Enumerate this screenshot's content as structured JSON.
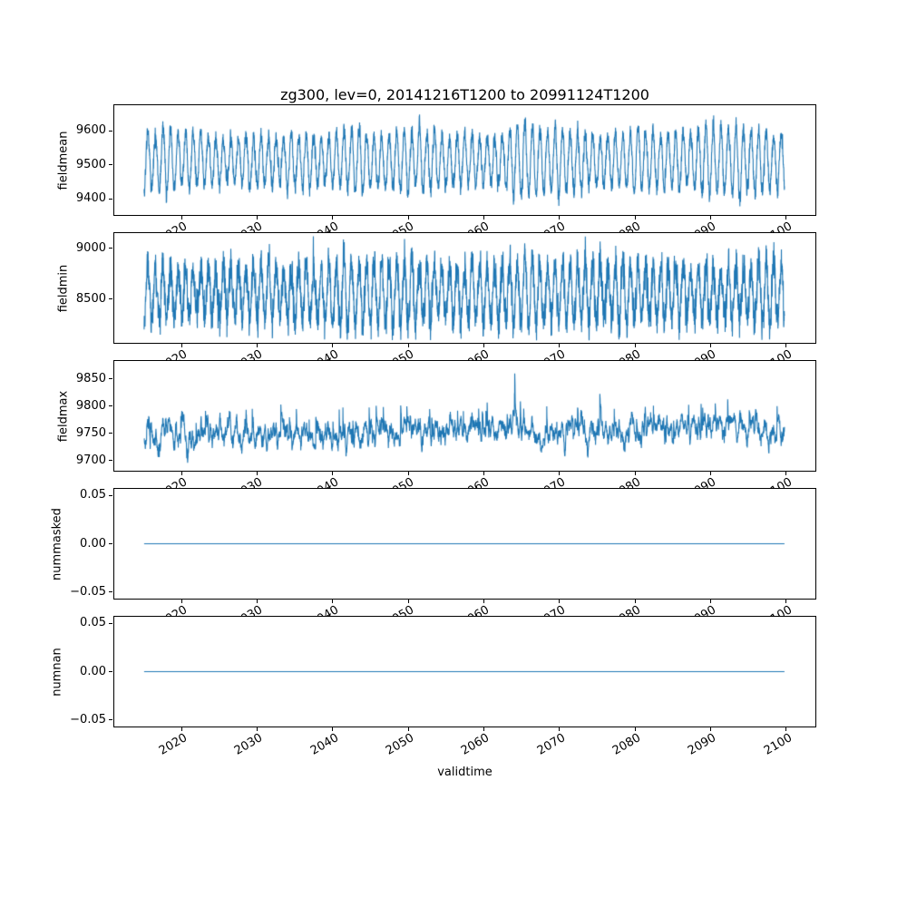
{
  "chart_data": {
    "type": "line",
    "title": "zg300, lev=0, 20141216T1200 to 20991124T1200",
    "grid": false,
    "legend": "none",
    "line_color": "#1f77b4",
    "x": {
      "label": "validtime",
      "lim": [
        2011,
        2104
      ],
      "data_range": [
        2014.96,
        2099.9
      ],
      "ticks": [
        {
          "v": 2020,
          "label": "2020"
        },
        {
          "v": 2030,
          "label": "2030"
        },
        {
          "v": 2040,
          "label": "2040"
        },
        {
          "v": 2050,
          "label": "2050"
        },
        {
          "v": 2060,
          "label": "2060"
        },
        {
          "v": 2070,
          "label": "2070"
        },
        {
          "v": 2080,
          "label": "2080"
        },
        {
          "v": 2090,
          "label": "2090"
        },
        {
          "v": 2100,
          "label": "2100"
        }
      ]
    },
    "subplots": [
      {
        "name": "fieldmean",
        "ylabel": "fieldmean",
        "type": "line",
        "ylim": [
          9350,
          9678
        ],
        "yticks": [
          {
            "v": 9400,
            "label": "9400"
          },
          {
            "v": 9500,
            "label": "9500"
          },
          {
            "v": 9600,
            "label": "9600"
          }
        ],
        "series": {
          "kind": "seasonal",
          "seed": 7,
          "points": 5200,
          "base": 9512,
          "season_amp": 88,
          "amp_jitter": 0.28,
          "noise_sigma": 13,
          "noise_ar": 0.45,
          "floor": 9362,
          "cap": 9666
        }
      },
      {
        "name": "fieldmin",
        "ylabel": "fieldmin",
        "type": "line",
        "ylim": [
          8060,
          9160
        ],
        "yticks": [
          {
            "v": 8500,
            "label": "8500"
          },
          {
            "v": 9000,
            "label": "9000"
          }
        ],
        "series": {
          "kind": "seasonal",
          "seed": 21,
          "points": 5200,
          "base": 8560,
          "season_amp": 285,
          "amp_jitter": 0.2,
          "noise_sigma": 88,
          "noise_ar": 0.3,
          "floor": 8085,
          "cap": 9130
        }
      },
      {
        "name": "fieldmax",
        "ylabel": "fieldmax",
        "type": "line",
        "ylim": [
          9680,
          9884
        ],
        "yticks": [
          {
            "v": 9700,
            "label": "9700"
          },
          {
            "v": 9750,
            "label": "9750"
          },
          {
            "v": 9800,
            "label": "9800"
          },
          {
            "v": 9850,
            "label": "9850"
          }
        ],
        "series": {
          "kind": "walk",
          "seed": 33,
          "points": 5200,
          "base": 9742,
          "trend": 22,
          "season_amp": 6,
          "ar": 0.93,
          "step": 5.5,
          "spike_prob": 0.012,
          "spike_scale": 48,
          "spike_decay": 0.8,
          "floor": 9690,
          "cap": 9864
        }
      },
      {
        "name": "nummasked",
        "ylabel": "nummasked",
        "type": "line",
        "ylim": [
          -0.058,
          0.058
        ],
        "yticks": [
          {
            "v": -0.05,
            "label": "−0.05"
          },
          {
            "v": 0.0,
            "label": "0.00"
          },
          {
            "v": 0.05,
            "label": "0.05"
          }
        ],
        "series": {
          "kind": "constant",
          "value": 0
        }
      },
      {
        "name": "numnan",
        "ylabel": "numnan",
        "type": "line",
        "ylim": [
          -0.058,
          0.058
        ],
        "yticks": [
          {
            "v": -0.05,
            "label": "−0.05"
          },
          {
            "v": 0.0,
            "label": "0.00"
          },
          {
            "v": 0.05,
            "label": "0.05"
          }
        ],
        "series": {
          "kind": "constant",
          "value": 0
        }
      }
    ]
  }
}
